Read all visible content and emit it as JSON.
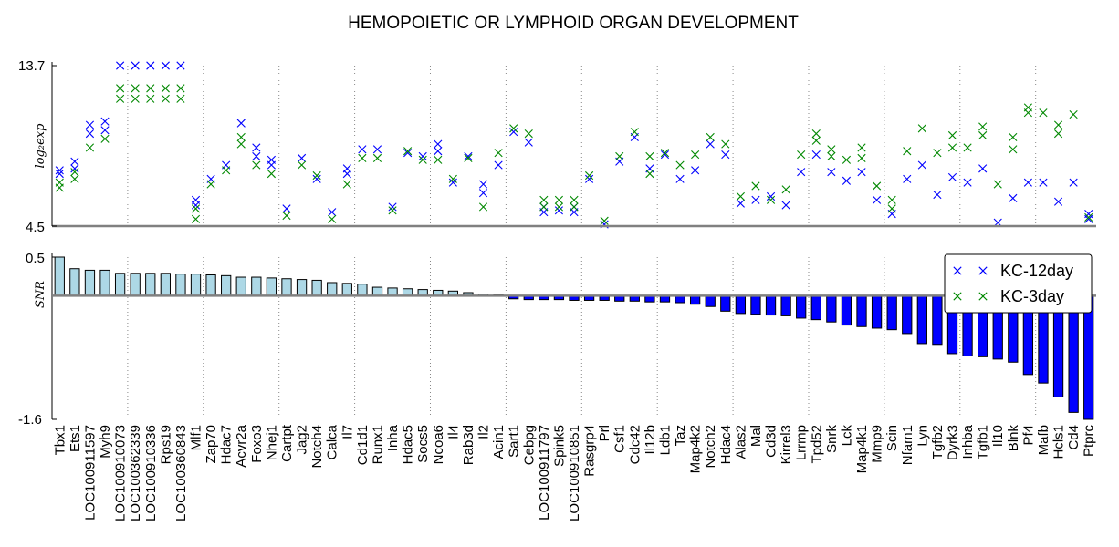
{
  "chart_data": {
    "title": "HEMOPOIETIC OR LYMPHOID ORGAN DEVELOPMENT",
    "type": "scatter",
    "genes": [
      "Tbx1",
      "Ets1",
      "LOC100911597",
      "Myh9",
      "LOC100910073",
      "LOC100362339",
      "LOC100910336",
      "Rps19",
      "LOC100360843",
      "Mlf1",
      "Zap70",
      "Hdac7",
      "Acvr2a",
      "Foxo3",
      "Nhej1",
      "Cartpt",
      "Jag2",
      "Notch4",
      "Calca",
      "Il7",
      "Cd1d1",
      "Runx1",
      "Inha",
      "Hdac5",
      "Socs5",
      "Ncoa6",
      "Il4",
      "Rab3d",
      "Il2",
      "Acin1",
      "Sart1",
      "Cebpg",
      "LOC100911797",
      "Spink5",
      "LOC100910851",
      "Rasgrp4",
      "Prl",
      "Csf1",
      "Cdc42",
      "Il12b",
      "Ldb1",
      "Taz",
      "Map4k2",
      "Notch2",
      "Hdac4",
      "Alas2",
      "Mal",
      "Cd3d",
      "Kirrel3",
      "Lrrmp",
      "Tpd52",
      "Snrk",
      "Lck",
      "Map4k1",
      "Mmp9",
      "Scin",
      "Nfam1",
      "Lyn",
      "Tgfb2",
      "Dyrk3",
      "Inhba",
      "Tgfb1",
      "Il10",
      "Blnk",
      "Pf4",
      "Mafb",
      "Hcls1",
      "Cd4",
      "Ptprc"
    ],
    "top_panel": {
      "ylabel": "log₂exp",
      "yticks": [
        "13.7",
        "4.5"
      ],
      "ylim": [
        4.5,
        13.7
      ],
      "series": [
        {
          "name": "KC-12day",
          "color": "#0000ff",
          "points": [
            [
              7.5,
              7.7
            ],
            [
              7.8,
              8.2
            ],
            [
              9.8,
              10.3
            ],
            [
              10.0,
              10.5
            ],
            [
              13.7
            ],
            [
              13.7
            ],
            [
              13.7
            ],
            [
              13.7
            ],
            [
              13.7
            ],
            [
              5.7,
              6.0
            ],
            [
              7.2
            ],
            [
              8.0
            ],
            [
              10.4
            ],
            [
              8.5,
              9.0
            ],
            [
              8.0,
              8.3
            ],
            [
              5.5
            ],
            [
              8.4
            ],
            [
              7.2
            ],
            [
              5.3
            ],
            [
              7.5,
              7.8
            ],
            [
              8.9
            ],
            [
              8.9
            ],
            [
              5.6
            ],
            [
              8.7
            ],
            [
              8.5
            ],
            [
              8.8,
              9.2
            ],
            [
              7.0
            ],
            [
              8.5
            ],
            [
              6.4,
              6.9
            ],
            [
              8.0
            ],
            [
              9.9
            ],
            [
              9.3
            ],
            [
              5.3,
              5.6
            ],
            [
              5.4
            ],
            [
              5.3,
              5.6
            ],
            [
              7.2
            ],
            [
              4.6
            ],
            [
              8.2
            ],
            [
              9.6
            ],
            [
              7.8
            ],
            [
              8.6
            ],
            [
              7.2
            ],
            [
              7.7
            ],
            [
              9.2
            ],
            [
              8.6
            ],
            [
              5.8
            ],
            [
              6.0
            ],
            [
              6.2
            ],
            [
              5.7
            ],
            [
              7.6
            ],
            [
              8.6
            ],
            [
              7.6
            ],
            [
              7.1
            ],
            [
              7.6
            ],
            [
              6.0
            ],
            [
              5.2
            ],
            [
              7.2
            ],
            [
              8.0
            ],
            [
              6.3
            ],
            [
              7.3
            ],
            [
              7.0
            ],
            [
              7.8
            ],
            [
              4.7
            ],
            [
              6.1
            ],
            [
              7.0
            ],
            [
              7.0
            ],
            [
              5.9
            ],
            [
              7.0
            ],
            [
              4.9,
              5.2
            ]
          ]
        },
        {
          "name": "KC-3day",
          "color": "#008800",
          "points": [
            [
              6.7,
              7.0
            ],
            [
              7.2,
              7.6
            ],
            [
              9.0
            ],
            [
              9.5
            ],
            [
              12.4,
              11.8
            ],
            [
              12.4,
              11.8
            ],
            [
              12.4,
              11.8
            ],
            [
              12.4,
              11.8
            ],
            [
              12.4,
              11.8
            ],
            [
              4.9,
              5.5
            ],
            [
              6.9
            ],
            [
              7.7
            ],
            [
              9.2,
              9.6
            ],
            [
              8.0
            ],
            [
              7.5
            ],
            [
              5.1
            ],
            [
              8.0
            ],
            [
              7.4
            ],
            [
              4.9
            ],
            [
              6.9
            ],
            [
              8.4
            ],
            [
              8.4
            ],
            [
              5.4
            ],
            [
              8.8
            ],
            [
              8.3
            ],
            [
              8.3
            ],
            [
              7.2
            ],
            [
              8.4
            ],
            [
              5.6
            ],
            [
              8.7
            ],
            [
              10.1
            ],
            [
              9.8
            ],
            [
              5.6,
              6.0
            ],
            [
              5.6,
              6.0
            ],
            [
              5.6,
              6.0
            ],
            [
              7.4
            ],
            [
              4.8
            ],
            [
              8.5
            ],
            [
              9.9
            ],
            [
              7.5,
              8.5
            ],
            [
              8.7
            ],
            [
              8.0
            ],
            [
              8.6
            ],
            [
              9.6
            ],
            [
              9.2
            ],
            [
              6.2
            ],
            [
              6.8
            ],
            [
              6.0
            ],
            [
              6.6
            ],
            [
              8.6
            ],
            [
              9.4,
              9.8
            ],
            [
              8.5,
              8.9
            ],
            [
              8.3
            ],
            [
              8.4,
              9.0
            ],
            [
              6.8
            ],
            [
              5.5,
              6.0
            ],
            [
              8.8
            ],
            [
              10.1
            ],
            [
              8.7
            ],
            [
              9.0,
              9.7
            ],
            [
              9.0
            ],
            [
              9.7,
              10.2
            ],
            [
              6.9
            ],
            [
              8.9,
              9.6
            ],
            [
              11.0,
              11.3
            ],
            [
              11.0
            ],
            [
              9.8,
              10.3
            ],
            [
              10.9
            ],
            [
              5.0
            ]
          ]
        }
      ]
    },
    "bottom_panel": {
      "type": "bar",
      "ylabel": "SNR",
      "yticks": [
        "0.5",
        "-1.6"
      ],
      "ylim": [
        -1.6,
        0.5
      ],
      "positive_color": "#add8e6",
      "negative_color": "#0000ff",
      "values": [
        0.5,
        0.35,
        0.33,
        0.33,
        0.29,
        0.29,
        0.29,
        0.29,
        0.28,
        0.28,
        0.27,
        0.26,
        0.24,
        0.24,
        0.23,
        0.22,
        0.21,
        0.2,
        0.17,
        0.16,
        0.15,
        0.11,
        0.1,
        0.09,
        0.08,
        0.07,
        0.06,
        0.04,
        0.02,
        0.01,
        -0.04,
        -0.05,
        -0.05,
        -0.05,
        -0.06,
        -0.06,
        -0.06,
        -0.07,
        -0.07,
        -0.08,
        -0.08,
        -0.09,
        -0.11,
        -0.14,
        -0.2,
        -0.23,
        -0.24,
        -0.25,
        -0.26,
        -0.29,
        -0.31,
        -0.34,
        -0.38,
        -0.4,
        -0.42,
        -0.44,
        -0.49,
        -0.62,
        -0.63,
        -0.75,
        -0.78,
        -0.79,
        -0.82,
        -0.86,
        -1.02,
        -1.13,
        -1.31,
        -1.51,
        -1.6
      ]
    },
    "legend": {
      "position": "top-right",
      "entries": [
        "KC-12day",
        "KC-3day"
      ]
    }
  }
}
